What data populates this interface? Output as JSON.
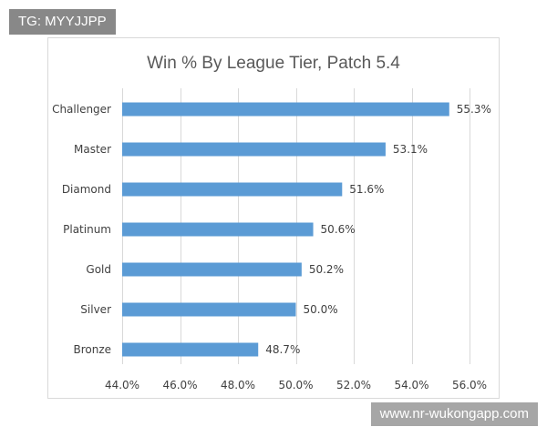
{
  "watermarks": {
    "top_left": "TG: MYYJJPP",
    "bottom_right": "www.nr-wukongapp.com"
  },
  "colors": {
    "bar": "#5b9bd5",
    "grid": "#d9d9d9",
    "text": "#404040",
    "title": "#595959"
  },
  "chart_data": {
    "type": "bar",
    "orientation": "horizontal",
    "title": "Win % By League Tier, Patch 5.4",
    "xlabel": "",
    "ylabel": "",
    "categories": [
      "Challenger",
      "Master",
      "Diamond",
      "Platinum",
      "Gold",
      "Silver",
      "Bronze"
    ],
    "values": [
      55.3,
      53.1,
      51.6,
      50.6,
      50.2,
      50.0,
      48.7
    ],
    "value_labels": [
      "55.3%",
      "53.1%",
      "51.6%",
      "50.6%",
      "50.2%",
      "50.0%",
      "48.7%"
    ],
    "xlim": [
      44,
      56
    ],
    "x_ticks": [
      44,
      46,
      48,
      50,
      52,
      54,
      56
    ],
    "x_tick_labels": [
      "44.0%",
      "46.0%",
      "48.0%",
      "50.0%",
      "52.0%",
      "54.0%",
      "56.0%"
    ],
    "grid": "vertical",
    "legend": "none"
  }
}
